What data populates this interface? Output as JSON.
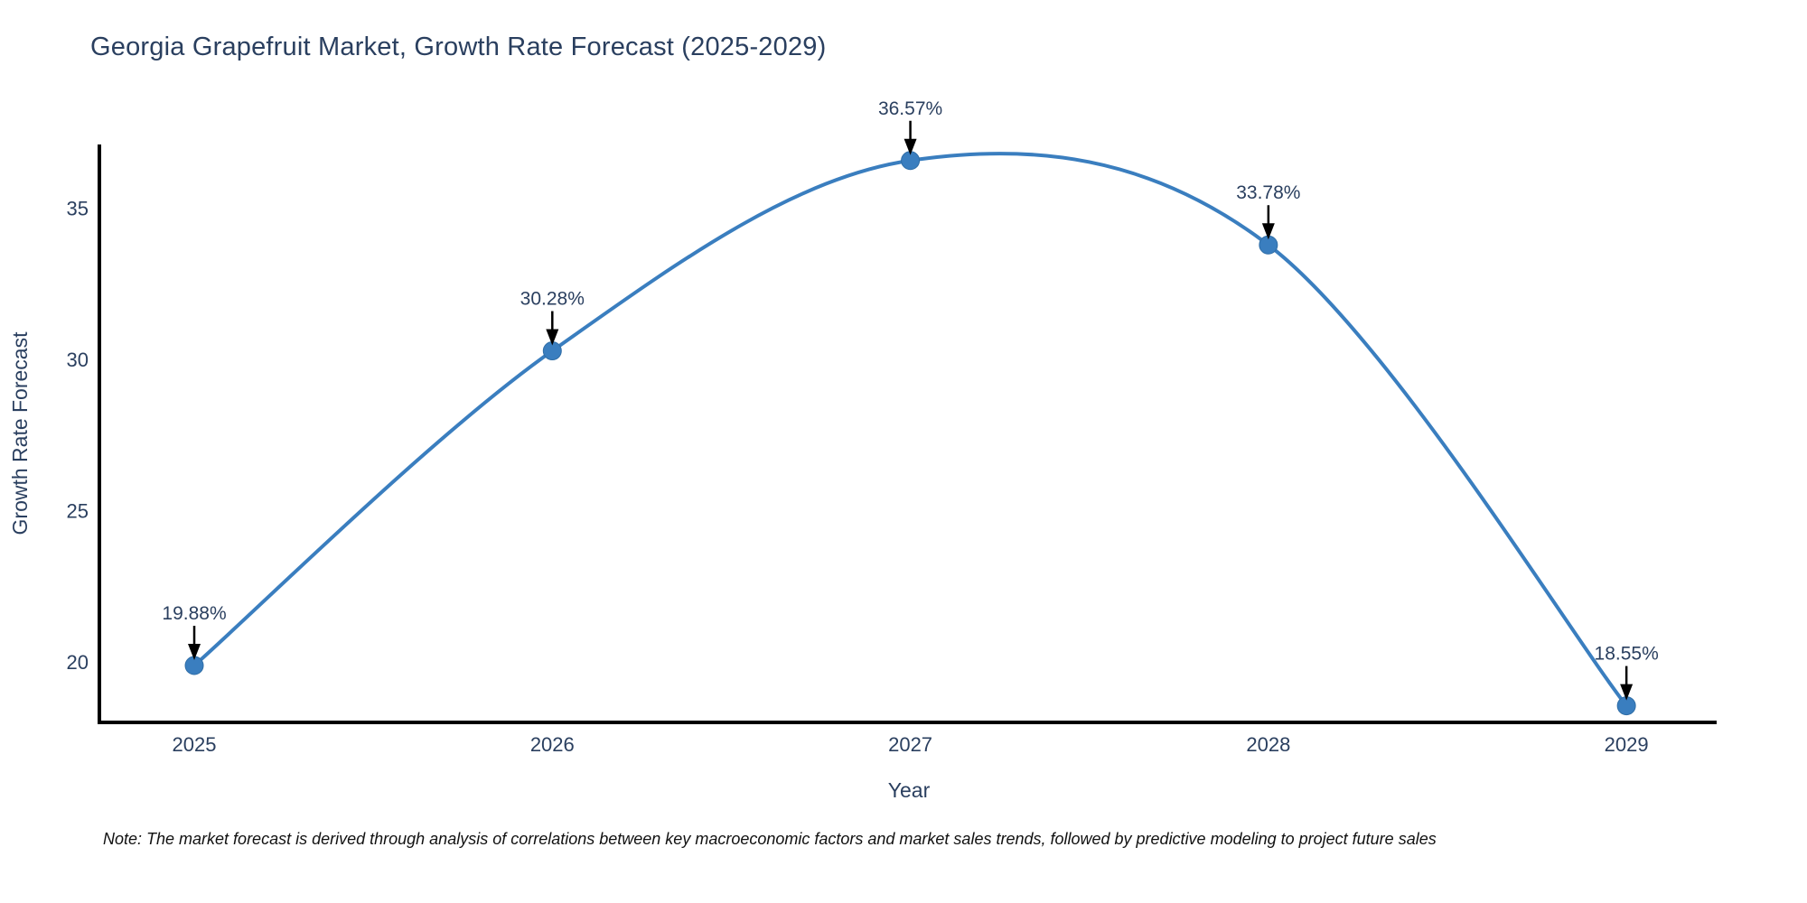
{
  "chart_data": {
    "type": "line",
    "title": "Georgia Grapefruit Market, Growth Rate Forecast (2025-2029)",
    "xlabel": "Year",
    "ylabel": "Growth Rate Forecast",
    "x": [
      2025,
      2026,
      2027,
      2028,
      2029
    ],
    "series": [
      {
        "name": "Growth Rate Forecast",
        "values": [
          19.88,
          30.28,
          36.57,
          33.78,
          18.55
        ],
        "point_labels": [
          "19.88%",
          "30.28%",
          "36.57%",
          "33.78%",
          "18.55%"
        ]
      }
    ],
    "line_shape": "spline",
    "markers": true,
    "grid": false,
    "legend": "none",
    "xticks": [
      "2025",
      "2026",
      "2027",
      "2028",
      "2029"
    ],
    "yticks": [
      20,
      25,
      30,
      35
    ],
    "xlim": [
      2024.735,
      2029.252
    ],
    "ylim": [
      18.0,
      37.1
    ],
    "colors": {
      "line": "#3a7ebf",
      "marker": "#3a7ebf",
      "marker_edge": "#2f6da6",
      "annotation_arrow": "#000000",
      "axis_line": "#000000",
      "text": "#2a3f5f"
    }
  },
  "note": "Note: The market forecast is derived through analysis of correlations between key macroeconomic factors and market sales trends, followed by predictive modeling to project future sales"
}
